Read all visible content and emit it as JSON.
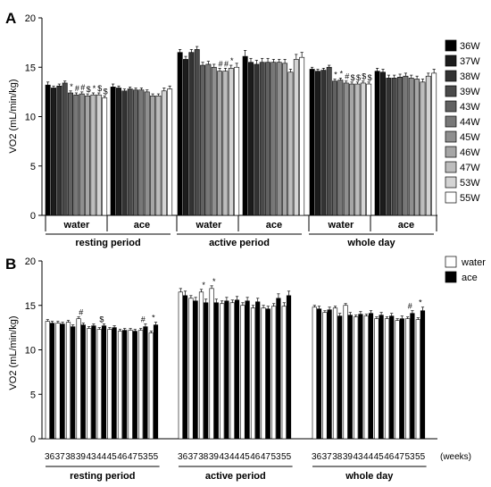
{
  "chart_data": [
    {
      "type": "bar",
      "panel_label": "A",
      "ylabel": "VO2 (mL/min/kg)",
      "ylim": [
        0,
        20
      ],
      "yticks": [
        0,
        5,
        10,
        15,
        20
      ],
      "subgroup_labels": [
        "water",
        "ace",
        "water",
        "ace",
        "water",
        "ace"
      ],
      "period_labels": [
        "resting period",
        "active period",
        "whole day"
      ],
      "legend": {
        "placement": "right",
        "items": [
          {
            "label": "36W",
            "color": "#000000"
          },
          {
            "label": "37W",
            "color": "#1c1c1c"
          },
          {
            "label": "38W",
            "color": "#333333"
          },
          {
            "label": "39W",
            "color": "#4a4a4a"
          },
          {
            "label": "43W",
            "color": "#616161"
          },
          {
            "label": "44W",
            "color": "#787878"
          },
          {
            "label": "45W",
            "color": "#8f8f8f"
          },
          {
            "label": "46W",
            "color": "#a6a6a6"
          },
          {
            "label": "47W",
            "color": "#bdbdbd"
          },
          {
            "label": "53W",
            "color": "#d4d4d4"
          },
          {
            "label": "55W",
            "color": "#ffffff"
          }
        ]
      },
      "series_groups": [
        {
          "period": "resting period",
          "group": "water",
          "values": [
            13.2,
            12.9,
            13.1,
            13.4,
            12.4,
            12.2,
            12.3,
            12.1,
            12.2,
            12.2,
            11.9
          ],
          "errors": [
            0.3,
            0.2,
            0.2,
            0.2,
            0.2,
            0.2,
            0.2,
            0.2,
            0.2,
            0.2,
            0.2
          ],
          "marks": [
            "",
            "",
            "",
            "",
            "*",
            "#",
            "#",
            "$",
            "*",
            "$",
            "$"
          ]
        },
        {
          "period": "resting period",
          "group": "ace",
          "values": [
            13.0,
            12.9,
            12.6,
            12.8,
            12.7,
            12.7,
            12.5,
            12.1,
            12.1,
            12.6,
            12.8
          ],
          "errors": [
            0.3,
            0.2,
            0.2,
            0.2,
            0.2,
            0.2,
            0.2,
            0.2,
            0.2,
            0.3,
            0.3
          ],
          "marks": [
            "",
            "",
            "",
            "",
            "",
            "",
            "",
            "",
            "",
            "",
            ""
          ]
        },
        {
          "period": "active period",
          "group": "water",
          "values": [
            16.5,
            15.8,
            16.5,
            16.8,
            15.2,
            15.3,
            15.0,
            14.6,
            14.6,
            14.9,
            15.0
          ],
          "errors": [
            0.3,
            0.3,
            0.3,
            0.3,
            0.3,
            0.3,
            0.3,
            0.3,
            0.3,
            0.3,
            0.4
          ],
          "marks": [
            "",
            "",
            "",
            "",
            "",
            "",
            "",
            "#",
            "#",
            "*",
            ""
          ]
        },
        {
          "period": "active period",
          "group": "ace",
          "values": [
            16.1,
            15.5,
            15.3,
            15.5,
            15.5,
            15.5,
            15.5,
            15.4,
            14.5,
            15.8,
            16.0
          ],
          "errors": [
            0.6,
            0.4,
            0.4,
            0.4,
            0.4,
            0.3,
            0.3,
            0.4,
            0.3,
            0.5,
            0.5
          ],
          "marks": [
            "",
            "",
            "",
            "",
            "",
            "",
            "",
            "",
            "",
            "",
            ""
          ]
        },
        {
          "period": "whole day",
          "group": "water",
          "values": [
            14.8,
            14.6,
            14.7,
            15.0,
            13.6,
            13.7,
            13.4,
            13.3,
            13.3,
            13.4,
            13.3
          ],
          "errors": [
            0.2,
            0.2,
            0.2,
            0.2,
            0.2,
            0.2,
            0.2,
            0.2,
            0.2,
            0.2,
            0.2
          ],
          "marks": [
            "",
            "",
            "",
            "",
            "*",
            "*",
            "#",
            "$",
            "$",
            "$",
            "$"
          ]
        },
        {
          "period": "whole day",
          "group": "ace",
          "values": [
            14.6,
            14.5,
            13.9,
            13.9,
            14.0,
            14.1,
            13.9,
            13.8,
            13.5,
            14.1,
            14.4
          ],
          "errors": [
            0.3,
            0.3,
            0.3,
            0.3,
            0.3,
            0.3,
            0.3,
            0.3,
            0.3,
            0.3,
            0.4
          ],
          "marks": [
            "",
            "",
            "",
            "",
            "",
            "",
            "",
            "",
            "",
            "",
            ""
          ]
        }
      ]
    },
    {
      "type": "bar",
      "panel_label": "B",
      "ylabel": "VO2 (mL/min/kg)",
      "ylim": [
        0,
        20
      ],
      "yticks": [
        0,
        5,
        10,
        15,
        20
      ],
      "categories": [
        "36",
        "37",
        "38",
        "39",
        "43",
        "44",
        "45",
        "46",
        "47",
        "53",
        "55"
      ],
      "x_unit_label": "(weeks)",
      "period_labels": [
        "resting period",
        "active period",
        "whole day"
      ],
      "legend": {
        "placement": "top-right",
        "items": [
          {
            "label": "water",
            "color": "#ffffff"
          },
          {
            "label": "ace",
            "color": "#000000"
          }
        ]
      },
      "periods": [
        {
          "period": "resting period",
          "series": [
            {
              "name": "water",
              "values": [
                13.2,
                13.0,
                13.1,
                13.5,
                12.4,
                12.3,
                12.3,
                12.1,
                12.2,
                12.2,
                11.9
              ],
              "errors": [
                0.2,
                0.2,
                0.2,
                0.2,
                0.2,
                0.2,
                0.2,
                0.2,
                0.2,
                0.2,
                0.2
              ]
            },
            {
              "name": "ace",
              "values": [
                13.0,
                12.9,
                12.6,
                12.8,
                12.7,
                12.7,
                12.5,
                12.2,
                12.1,
                12.6,
                12.8
              ],
              "errors": [
                0.2,
                0.2,
                0.2,
                0.2,
                0.2,
                0.2,
                0.2,
                0.2,
                0.2,
                0.3,
                0.3
              ]
            }
          ],
          "marks": [
            "",
            "",
            "",
            "#",
            "",
            "$",
            "",
            "",
            "",
            "#",
            "*"
          ]
        },
        {
          "period": "active period",
          "series": [
            {
              "name": "water",
              "values": [
                16.5,
                15.8,
                16.5,
                16.9,
                15.2,
                15.3,
                15.0,
                14.7,
                14.7,
                14.9,
                14.9
              ],
              "errors": [
                0.4,
                0.3,
                0.3,
                0.3,
                0.3,
                0.3,
                0.3,
                0.3,
                0.3,
                0.3,
                0.4
              ]
            },
            {
              "name": "ace",
              "values": [
                16.1,
                15.5,
                15.3,
                15.3,
                15.5,
                15.6,
                15.5,
                15.4,
                14.6,
                15.8,
                16.1
              ],
              "errors": [
                0.5,
                0.4,
                0.4,
                0.4,
                0.4,
                0.4,
                0.4,
                0.4,
                0.3,
                0.5,
                0.5
              ]
            }
          ],
          "marks": [
            "",
            "",
            "*",
            "*",
            "",
            "",
            "",
            "",
            "",
            "",
            ""
          ]
        },
        {
          "period": "whole day",
          "series": [
            {
              "name": "water",
              "values": [
                14.8,
                14.2,
                14.7,
                15.0,
                13.7,
                13.8,
                13.5,
                13.5,
                13.3,
                13.5,
                13.4
              ],
              "errors": [
                0.2,
                0.2,
                0.2,
                0.2,
                0.2,
                0.2,
                0.2,
                0.2,
                0.2,
                0.2,
                0.2
              ]
            },
            {
              "name": "ace",
              "values": [
                14.6,
                14.5,
                13.8,
                13.9,
                14.0,
                14.1,
                13.9,
                13.8,
                13.5,
                14.1,
                14.4
              ],
              "errors": [
                0.3,
                0.3,
                0.3,
                0.3,
                0.3,
                0.3,
                0.3,
                0.3,
                0.3,
                0.3,
                0.4
              ]
            }
          ],
          "marks": [
            "",
            "",
            "",
            "",
            "",
            "",
            "",
            "",
            "",
            "#",
            "*"
          ]
        }
      ]
    }
  ]
}
